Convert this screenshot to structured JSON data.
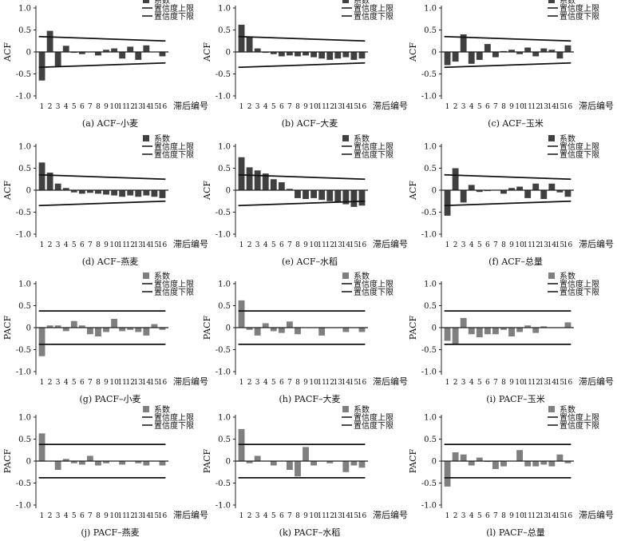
{
  "figure": {
    "legend": {
      "coef": "系数",
      "upper": "置信度上限",
      "lower": "置信度下限"
    },
    "x_axis_label": "滞后编号",
    "colors": {
      "acf_bar": "#404040",
      "pacf_bar": "#7f7f7f",
      "line": "#111111",
      "text": "#111111"
    }
  },
  "chart_data": [
    {
      "type": "bar",
      "kind": "ACF",
      "title": "(a) ACF–小麦",
      "ylabel": "ACF",
      "categories": [
        "1",
        "2",
        "3",
        "4",
        "5",
        "6",
        "7",
        "8",
        "9",
        "10",
        "11",
        "12",
        "13",
        "14",
        "15",
        "16"
      ],
      "ylim": [
        -1.0,
        1.0
      ],
      "yticks": [
        "1.0",
        "0.5",
        "0",
        "-0.5",
        "-1.0"
      ],
      "series": [
        {
          "name": "系数",
          "values": [
            -0.65,
            0.48,
            -0.32,
            0.14,
            -0.02,
            -0.05,
            0.0,
            -0.08,
            0.05,
            0.08,
            -0.15,
            0.12,
            -0.18,
            0.15,
            0.0,
            -0.1
          ]
        }
      ],
      "upper_limit": [
        0.35,
        0.25
      ],
      "lower_limit": [
        -0.35,
        -0.25
      ]
    },
    {
      "type": "bar",
      "kind": "ACF",
      "title": "(b) ACF–大麦",
      "ylabel": "ACF",
      "categories": [
        "1",
        "2",
        "3",
        "4",
        "5",
        "6",
        "7",
        "8",
        "9",
        "10",
        "11",
        "12",
        "13",
        "14",
        "15",
        "16"
      ],
      "ylim": [
        -1.0,
        1.0
      ],
      "yticks": [
        "1.0",
        "0.5",
        "0",
        "-0.5",
        "-1.0"
      ],
      "series": [
        {
          "name": "系数",
          "values": [
            0.62,
            0.35,
            0.08,
            -0.02,
            -0.05,
            -0.1,
            -0.08,
            -0.1,
            -0.08,
            -0.12,
            -0.15,
            -0.18,
            -0.15,
            -0.12,
            -0.18,
            -0.15
          ]
        }
      ],
      "upper_limit": [
        0.35,
        0.25
      ],
      "lower_limit": [
        -0.35,
        -0.25
      ]
    },
    {
      "type": "bar",
      "kind": "ACF",
      "title": "(c) ACF–玉米",
      "ylabel": "ACF",
      "categories": [
        "1",
        "2",
        "3",
        "4",
        "5",
        "6",
        "7",
        "8",
        "9",
        "10",
        "11",
        "12",
        "13",
        "14",
        "15",
        "16"
      ],
      "ylim": [
        -1.0,
        1.0
      ],
      "yticks": [
        "1.0",
        "0.5",
        "0",
        "-0.5",
        "-1.0"
      ],
      "series": [
        {
          "name": "系数",
          "values": [
            -0.3,
            -0.22,
            0.4,
            -0.27,
            -0.18,
            0.18,
            -0.12,
            0.02,
            0.05,
            -0.05,
            0.1,
            -0.1,
            0.08,
            0.05,
            -0.15,
            0.15
          ]
        }
      ],
      "upper_limit": [
        0.35,
        0.25
      ],
      "lower_limit": [
        -0.35,
        -0.25
      ]
    },
    {
      "type": "bar",
      "kind": "ACF",
      "title": "(d) ACF–燕麦",
      "ylabel": "ACF",
      "categories": [
        "1",
        "2",
        "3",
        "4",
        "5",
        "6",
        "7",
        "8",
        "9",
        "10",
        "11",
        "12",
        "13",
        "14",
        "15",
        "16"
      ],
      "ylim": [
        -1.0,
        1.0
      ],
      "yticks": [
        "1.0",
        "0.5",
        "0",
        "-0.5",
        "-1.0"
      ],
      "series": [
        {
          "name": "系数",
          "values": [
            0.63,
            0.4,
            0.15,
            0.05,
            -0.05,
            -0.08,
            -0.06,
            -0.08,
            -0.1,
            -0.12,
            -0.15,
            -0.12,
            -0.15,
            -0.12,
            -0.15,
            -0.18
          ]
        }
      ],
      "upper_limit": [
        0.35,
        0.25
      ],
      "lower_limit": [
        -0.35,
        -0.25
      ]
    },
    {
      "type": "bar",
      "kind": "ACF",
      "title": "(e) ACF–水稻",
      "ylabel": "ACF",
      "categories": [
        "1",
        "2",
        "3",
        "4",
        "5",
        "6",
        "7",
        "8",
        "9",
        "10",
        "11",
        "12",
        "13",
        "14",
        "15",
        "16"
      ],
      "ylim": [
        -1.0,
        1.0
      ],
      "yticks": [
        "1.0",
        "0.5",
        "0",
        "-0.5",
        "-1.0"
      ],
      "series": [
        {
          "name": "系数",
          "values": [
            0.75,
            0.52,
            0.45,
            0.38,
            0.25,
            0.18,
            0.03,
            -0.18,
            -0.2,
            -0.18,
            -0.22,
            -0.25,
            -0.28,
            -0.32,
            -0.38,
            -0.35
          ]
        }
      ],
      "upper_limit": [
        0.35,
        0.25
      ],
      "lower_limit": [
        -0.35,
        -0.25
      ]
    },
    {
      "type": "bar",
      "kind": "ACF",
      "title": "(f) ACF–总量",
      "ylabel": "ACF",
      "categories": [
        "1",
        "2",
        "3",
        "4",
        "5",
        "6",
        "7",
        "8",
        "9",
        "10",
        "11",
        "12",
        "13",
        "14",
        "15",
        "16"
      ],
      "ylim": [
        -1.0,
        1.0
      ],
      "yticks": [
        "1.0",
        "0.5",
        "0",
        "-0.5",
        "-1.0"
      ],
      "series": [
        {
          "name": "系数",
          "values": [
            -0.58,
            0.5,
            -0.28,
            0.12,
            -0.04,
            -0.02,
            0.0,
            -0.08,
            0.05,
            0.08,
            -0.18,
            0.15,
            -0.2,
            0.15,
            -0.05,
            -0.15
          ]
        }
      ],
      "upper_limit": [
        0.35,
        0.25
      ],
      "lower_limit": [
        -0.35,
        -0.25
      ]
    },
    {
      "type": "bar",
      "kind": "PACF",
      "title": "(g) PACF–小麦",
      "ylabel": "PACF",
      "categories": [
        "1",
        "2",
        "3",
        "4",
        "5",
        "6",
        "7",
        "8",
        "9",
        "10",
        "11",
        "12",
        "13",
        "14",
        "15",
        "16"
      ],
      "ylim": [
        -1.0,
        1.0
      ],
      "yticks": [
        "1.0",
        "0.5",
        "0",
        "-0.5",
        "-1.0"
      ],
      "series": [
        {
          "name": "系数",
          "values": [
            -0.65,
            0.05,
            0.05,
            -0.08,
            0.15,
            0.05,
            -0.15,
            -0.2,
            -0.1,
            0.2,
            -0.08,
            -0.05,
            -0.1,
            -0.18,
            0.08,
            -0.05
          ]
        }
      ],
      "upper_limit": [
        0.38,
        0.38
      ],
      "lower_limit": [
        -0.38,
        -0.38
      ]
    },
    {
      "type": "bar",
      "kind": "PACF",
      "title": "(h) PACF–大麦",
      "ylabel": "PACF",
      "categories": [
        "1",
        "2",
        "3",
        "4",
        "5",
        "6",
        "7",
        "8",
        "9",
        "10",
        "11",
        "12",
        "13",
        "14",
        "15",
        "16"
      ],
      "ylim": [
        -1.0,
        1.0
      ],
      "yticks": [
        "1.0",
        "0.5",
        "0",
        "-0.5",
        "-1.0"
      ],
      "series": [
        {
          "name": "系数",
          "values": [
            0.62,
            -0.05,
            -0.18,
            0.1,
            -0.08,
            -0.12,
            0.14,
            -0.15,
            0.0,
            0.0,
            -0.18,
            0.0,
            0.0,
            -0.1,
            0.0,
            -0.1
          ]
        }
      ],
      "upper_limit": [
        0.38,
        0.38
      ],
      "lower_limit": [
        -0.38,
        -0.38
      ]
    },
    {
      "type": "bar",
      "kind": "PACF",
      "title": "(i) PACF–玉米",
      "ylabel": "PACF",
      "categories": [
        "1",
        "2",
        "3",
        "4",
        "5",
        "6",
        "7",
        "8",
        "9",
        "10",
        "11",
        "12",
        "13",
        "14",
        "15",
        "16"
      ],
      "ylim": [
        -1.0,
        1.0
      ],
      "yticks": [
        "1.0",
        "0.5",
        "0",
        "-0.5",
        "-1.0"
      ],
      "series": [
        {
          "name": "系数",
          "values": [
            -0.3,
            -0.38,
            0.22,
            -0.15,
            -0.22,
            -0.15,
            -0.15,
            -0.05,
            -0.2,
            -0.1,
            0.05,
            -0.12,
            0.03,
            0.0,
            0.0,
            0.12
          ]
        }
      ],
      "upper_limit": [
        0.38,
        0.38
      ],
      "lower_limit": [
        -0.38,
        -0.38
      ]
    },
    {
      "type": "bar",
      "kind": "PACF",
      "title": "(j) PACF–燕麦",
      "ylabel": "PACF",
      "categories": [
        "1",
        "2",
        "3",
        "4",
        "5",
        "6",
        "7",
        "8",
        "9",
        "10",
        "11",
        "12",
        "13",
        "14",
        "15",
        "16"
      ],
      "ylim": [
        -1.0,
        1.0
      ],
      "yticks": [
        "1.0",
        "0.5",
        "0",
        "-0.5",
        "-1.0"
      ],
      "series": [
        {
          "name": "系数",
          "values": [
            0.63,
            0.0,
            -0.2,
            0.05,
            -0.05,
            -0.08,
            0.12,
            -0.1,
            -0.05,
            0.0,
            -0.08,
            0.0,
            -0.05,
            -0.1,
            0.0,
            -0.1
          ]
        }
      ],
      "upper_limit": [
        0.38,
        0.38
      ],
      "lower_limit": [
        -0.38,
        -0.38
      ]
    },
    {
      "type": "bar",
      "kind": "PACF",
      "title": "(k) PACF–水稻",
      "ylabel": "PACF",
      "categories": [
        "1",
        "2",
        "3",
        "4",
        "5",
        "6",
        "7",
        "8",
        "9",
        "10",
        "11",
        "12",
        "13",
        "14",
        "15",
        "16"
      ],
      "ylim": [
        -1.0,
        1.0
      ],
      "yticks": [
        "1.0",
        "0.5",
        "0",
        "-0.5",
        "-1.0"
      ],
      "series": [
        {
          "name": "系数",
          "values": [
            0.73,
            -0.05,
            0.12,
            0.0,
            -0.1,
            0.0,
            -0.2,
            -0.35,
            0.32,
            -0.1,
            0.0,
            -0.05,
            0.0,
            -0.25,
            -0.1,
            -0.15
          ]
        }
      ],
      "upper_limit": [
        0.38,
        0.38
      ],
      "lower_limit": [
        -0.38,
        -0.38
      ]
    },
    {
      "type": "bar",
      "kind": "PACF",
      "title": "(l) PACF–总量",
      "ylabel": "PACF",
      "categories": [
        "1",
        "2",
        "3",
        "4",
        "5",
        "6",
        "7",
        "8",
        "9",
        "10",
        "11",
        "12",
        "13",
        "14",
        "15",
        "16"
      ],
      "ylim": [
        -1.0,
        1.0
      ],
      "yticks": [
        "1.0",
        "0.5",
        "0",
        "-0.5",
        "-1.0"
      ],
      "series": [
        {
          "name": "系数",
          "values": [
            -0.58,
            0.2,
            0.15,
            -0.1,
            0.08,
            -0.02,
            -0.18,
            -0.12,
            0.0,
            0.25,
            -0.12,
            -0.12,
            -0.08,
            -0.12,
            0.15,
            -0.05
          ]
        }
      ],
      "upper_limit": [
        0.38,
        0.38
      ],
      "lower_limit": [
        -0.38,
        -0.38
      ]
    }
  ]
}
